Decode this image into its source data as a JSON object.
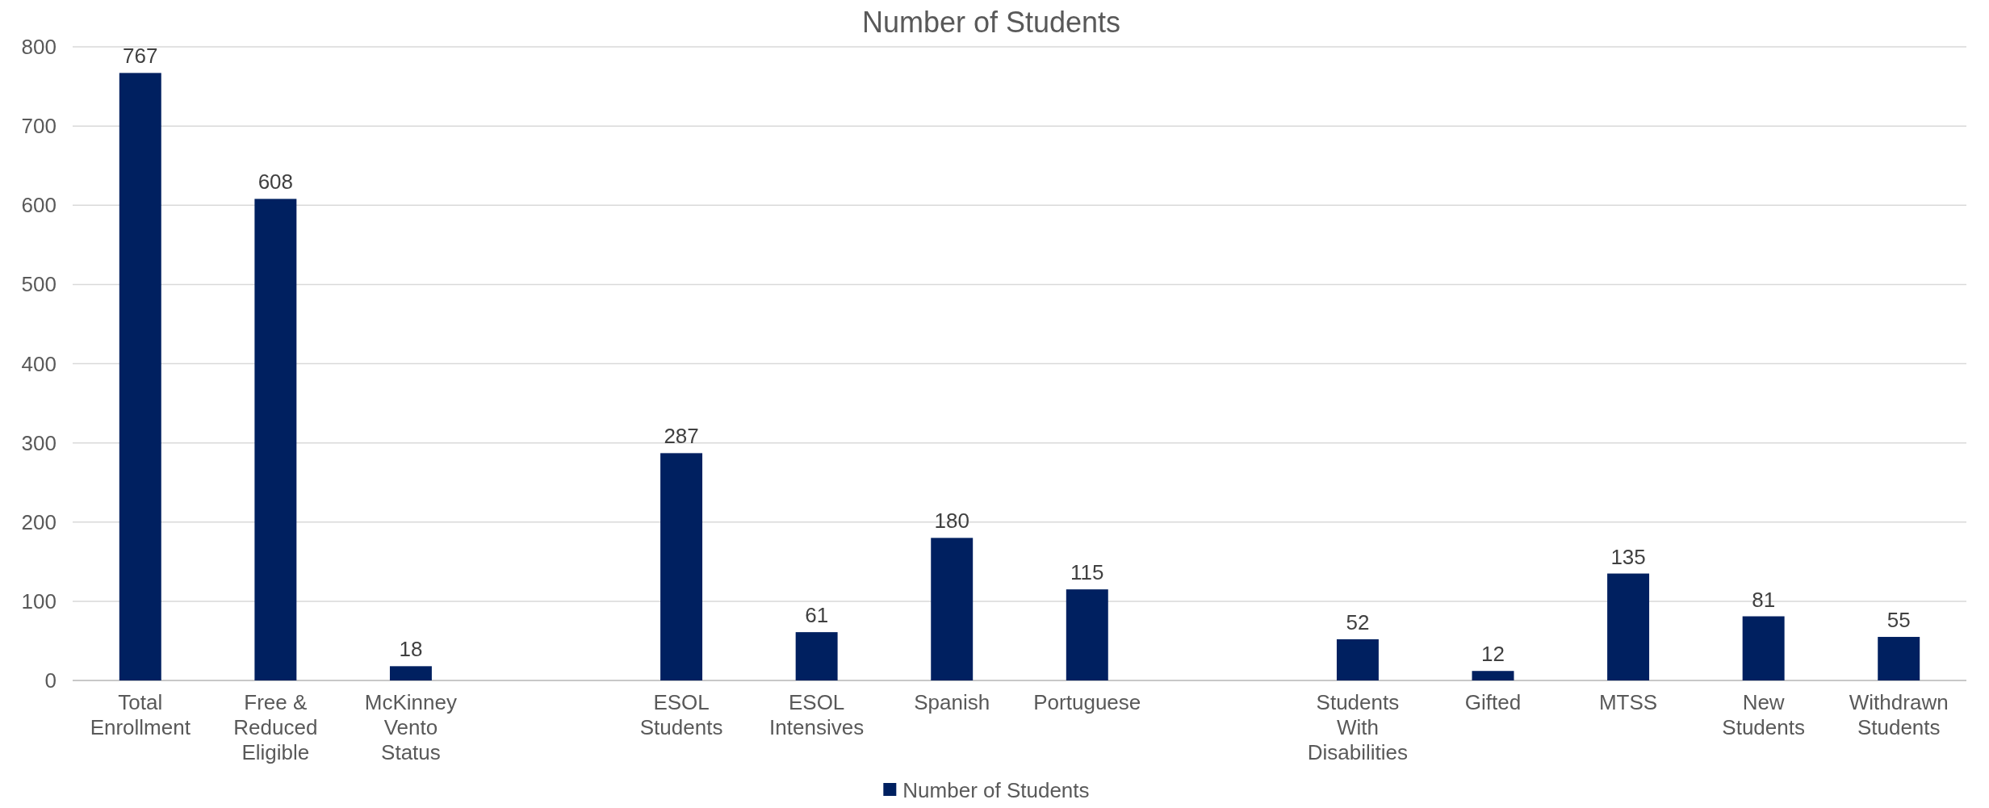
{
  "chart_data": {
    "type": "bar",
    "title": "Number of Students",
    "categories": [
      "Total Enrollment",
      "Free & Reduced Eligible",
      "McKinney Vento Status",
      null,
      "ESOL Students",
      "ESOL Intensives",
      "Spanish",
      "Portuguese",
      null,
      "Students With Disabilities",
      "Gifted",
      "MTSS",
      "New Students",
      "Withdrawn Students"
    ],
    "series": [
      {
        "name": "Number of Students",
        "color": "#002060",
        "values": [
          767,
          608,
          18,
          null,
          287,
          61,
          180,
          115,
          null,
          52,
          12,
          135,
          81,
          55
        ]
      }
    ],
    "ylim": [
      0,
      800
    ],
    "yticks": [
      0,
      100,
      200,
      300,
      400,
      500,
      600,
      700,
      800
    ],
    "grid": "y",
    "legend": "bottom",
    "data_labels": true
  }
}
